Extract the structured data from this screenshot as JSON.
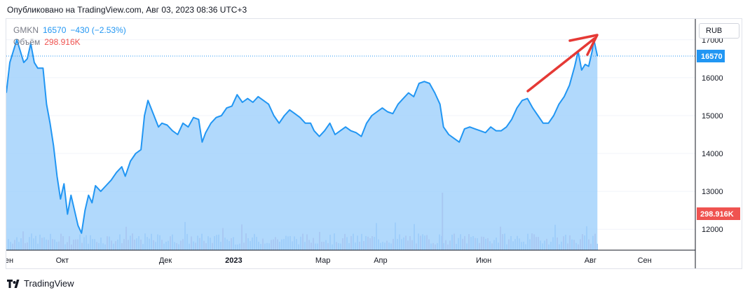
{
  "header": {
    "published": "Опубликовано на TradingView.com, Авг 03, 2023 08:36 UTC+3"
  },
  "legend": {
    "symbol": "GMKN",
    "last": "16570",
    "change": "−430 (−2.53%)",
    "volume_label": "Объём",
    "volume_value": "298.916K"
  },
  "currency": "RUB",
  "footer": {
    "brand": "TradingView"
  },
  "colors": {
    "line": "#2196f3",
    "area": "#9dd0fb",
    "volume_up": "#99c3f5",
    "volume_down": "#d1a9cb",
    "volume_badge": "#ef5350",
    "price_badge": "#2196f3",
    "arrow": "#e53935"
  },
  "chart_data": {
    "type": "area",
    "symbol": "GMKN",
    "y_axis": {
      "ticks": [
        12000,
        13000,
        14000,
        15000,
        16000,
        17000
      ],
      "range": [
        11450,
        17550
      ]
    },
    "x_axis": {
      "range": [
        "2022-09-01",
        "2023-09-30"
      ],
      "ticks": [
        {
          "label": "Сен",
          "date": "2022-09-01"
        },
        {
          "label": "Окт",
          "date": "2022-10-03"
        },
        {
          "label": "Дек",
          "date": "2022-12-01"
        },
        {
          "label": "2023",
          "date": "2023-01-09"
        },
        {
          "label": "Мар",
          "date": "2023-03-01"
        },
        {
          "label": "Апр",
          "date": "2023-04-03"
        },
        {
          "label": "Июн",
          "date": "2023-06-01"
        },
        {
          "label": "Авг",
          "date": "2023-08-01"
        },
        {
          "label": "Сен",
          "date": "2023-09-01"
        }
      ]
    },
    "last_price": {
      "value": 16570,
      "label": "16570"
    },
    "last_volume": {
      "label": "298.916K"
    },
    "series": [
      {
        "points": [
          [
            "2022-09-01",
            15600
          ],
          [
            "2022-09-03",
            16400
          ],
          [
            "2022-09-05",
            16700
          ],
          [
            "2022-09-07",
            17000
          ],
          [
            "2022-09-09",
            16700
          ],
          [
            "2022-09-11",
            16400
          ],
          [
            "2022-09-13",
            16500
          ],
          [
            "2022-09-15",
            16900
          ],
          [
            "2022-09-17",
            16400
          ],
          [
            "2022-09-19",
            16250
          ],
          [
            "2022-09-22",
            16250
          ],
          [
            "2022-09-24",
            15300
          ],
          [
            "2022-09-26",
            14800
          ],
          [
            "2022-09-28",
            14200
          ],
          [
            "2022-09-30",
            13400
          ],
          [
            "2022-10-02",
            12800
          ],
          [
            "2022-10-04",
            13200
          ],
          [
            "2022-10-06",
            12400
          ],
          [
            "2022-10-08",
            12900
          ],
          [
            "2022-10-10",
            12500
          ],
          [
            "2022-10-12",
            12100
          ],
          [
            "2022-10-14",
            11900
          ],
          [
            "2022-10-16",
            12500
          ],
          [
            "2022-10-18",
            12900
          ],
          [
            "2022-10-20",
            12700
          ],
          [
            "2022-10-22",
            13150
          ],
          [
            "2022-10-25",
            13000
          ],
          [
            "2022-10-28",
            13150
          ],
          [
            "2022-10-31",
            13300
          ],
          [
            "2022-11-03",
            13500
          ],
          [
            "2022-11-06",
            13650
          ],
          [
            "2022-11-08",
            13400
          ],
          [
            "2022-11-11",
            13800
          ],
          [
            "2022-11-14",
            14000
          ],
          [
            "2022-11-17",
            14100
          ],
          [
            "2022-11-19",
            15000
          ],
          [
            "2022-11-21",
            15400
          ],
          [
            "2022-11-24",
            15050
          ],
          [
            "2022-11-27",
            14700
          ],
          [
            "2022-11-29",
            14800
          ],
          [
            "2022-12-02",
            14750
          ],
          [
            "2022-12-05",
            14600
          ],
          [
            "2022-12-08",
            14500
          ],
          [
            "2022-12-11",
            14800
          ],
          [
            "2022-12-14",
            14700
          ],
          [
            "2022-12-17",
            14950
          ],
          [
            "2022-12-20",
            14900
          ],
          [
            "2022-12-22",
            14300
          ],
          [
            "2022-12-24",
            14550
          ],
          [
            "2022-12-27",
            14800
          ],
          [
            "2022-12-30",
            14950
          ],
          [
            "2023-01-02",
            15000
          ],
          [
            "2023-01-05",
            15200
          ],
          [
            "2023-01-08",
            15250
          ],
          [
            "2023-01-11",
            15550
          ],
          [
            "2023-01-14",
            15350
          ],
          [
            "2023-01-17",
            15450
          ],
          [
            "2023-01-20",
            15350
          ],
          [
            "2023-01-23",
            15500
          ],
          [
            "2023-01-26",
            15400
          ],
          [
            "2023-01-29",
            15300
          ],
          [
            "2023-02-01",
            15000
          ],
          [
            "2023-02-04",
            14800
          ],
          [
            "2023-02-07",
            15000
          ],
          [
            "2023-02-10",
            15150
          ],
          [
            "2023-02-13",
            15050
          ],
          [
            "2023-02-16",
            14950
          ],
          [
            "2023-02-19",
            14800
          ],
          [
            "2023-02-22",
            14800
          ],
          [
            "2023-02-24",
            14600
          ],
          [
            "2023-02-27",
            14450
          ],
          [
            "2023-03-02",
            14600
          ],
          [
            "2023-03-05",
            14800
          ],
          [
            "2023-03-08",
            14500
          ],
          [
            "2023-03-11",
            14600
          ],
          [
            "2023-03-14",
            14700
          ],
          [
            "2023-03-17",
            14600
          ],
          [
            "2023-03-20",
            14550
          ],
          [
            "2023-03-23",
            14450
          ],
          [
            "2023-03-26",
            14800
          ],
          [
            "2023-03-29",
            15000
          ],
          [
            "2023-04-01",
            15100
          ],
          [
            "2023-04-04",
            15200
          ],
          [
            "2023-04-07",
            15100
          ],
          [
            "2023-04-10",
            15050
          ],
          [
            "2023-04-13",
            15300
          ],
          [
            "2023-04-16",
            15450
          ],
          [
            "2023-04-19",
            15600
          ],
          [
            "2023-04-22",
            15500
          ],
          [
            "2023-04-25",
            15850
          ],
          [
            "2023-04-28",
            15900
          ],
          [
            "2023-05-01",
            15850
          ],
          [
            "2023-05-04",
            15600
          ],
          [
            "2023-05-07",
            15300
          ],
          [
            "2023-05-09",
            14700
          ],
          [
            "2023-05-12",
            14500
          ],
          [
            "2023-05-15",
            14400
          ],
          [
            "2023-05-18",
            14300
          ],
          [
            "2023-05-21",
            14650
          ],
          [
            "2023-05-24",
            14700
          ],
          [
            "2023-05-27",
            14650
          ],
          [
            "2023-05-30",
            14600
          ],
          [
            "2023-06-02",
            14550
          ],
          [
            "2023-06-05",
            14700
          ],
          [
            "2023-06-08",
            14600
          ],
          [
            "2023-06-11",
            14600
          ],
          [
            "2023-06-14",
            14700
          ],
          [
            "2023-06-17",
            14900
          ],
          [
            "2023-06-20",
            15200
          ],
          [
            "2023-06-23",
            15400
          ],
          [
            "2023-06-26",
            15450
          ],
          [
            "2023-06-29",
            15200
          ],
          [
            "2023-07-02",
            15000
          ],
          [
            "2023-07-05",
            14800
          ],
          [
            "2023-07-08",
            14800
          ],
          [
            "2023-07-11",
            15000
          ],
          [
            "2023-07-14",
            15300
          ],
          [
            "2023-07-17",
            15500
          ],
          [
            "2023-07-20",
            15800
          ],
          [
            "2023-07-23",
            16300
          ],
          [
            "2023-07-25",
            16700
          ],
          [
            "2023-07-27",
            16200
          ],
          [
            "2023-07-29",
            16350
          ],
          [
            "2023-07-31",
            16300
          ],
          [
            "2023-08-02",
            16700
          ],
          [
            "2023-08-03",
            17000
          ],
          [
            "2023-08-05",
            16570
          ]
        ]
      }
    ]
  }
}
